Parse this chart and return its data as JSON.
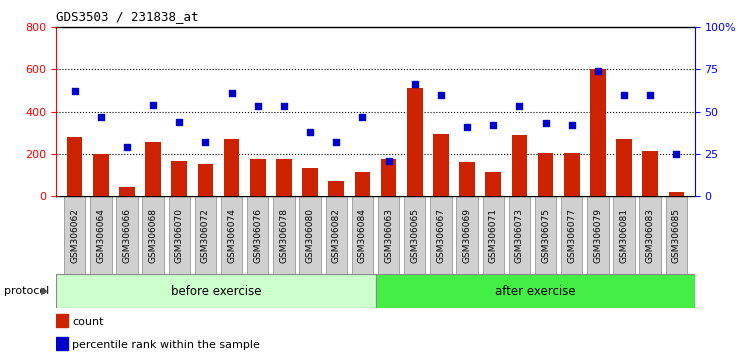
{
  "title": "GDS3503 / 231838_at",
  "categories": [
    "GSM306062",
    "GSM306064",
    "GSM306066",
    "GSM306068",
    "GSM306070",
    "GSM306072",
    "GSM306074",
    "GSM306076",
    "GSM306078",
    "GSM306080",
    "GSM306082",
    "GSM306084",
    "GSM306063",
    "GSM306065",
    "GSM306067",
    "GSM306069",
    "GSM306071",
    "GSM306073",
    "GSM306075",
    "GSM306077",
    "GSM306079",
    "GSM306081",
    "GSM306083",
    "GSM306085"
  ],
  "count_values": [
    280,
    200,
    45,
    255,
    165,
    155,
    270,
    175,
    175,
    135,
    75,
    115,
    175,
    510,
    295,
    160,
    115,
    290,
    205,
    205,
    600,
    270,
    215,
    20
  ],
  "percentile_values": [
    62,
    47,
    29,
    54,
    44,
    32,
    61,
    53,
    53,
    38,
    32,
    47,
    21,
    66,
    60,
    41,
    42,
    53,
    43,
    42,
    74,
    60,
    60,
    25
  ],
  "before_exercise_count": 12,
  "after_exercise_count": 12,
  "left_ylim": [
    0,
    800
  ],
  "right_ylim": [
    0,
    100
  ],
  "left_yticks": [
    0,
    200,
    400,
    600,
    800
  ],
  "right_yticks": [
    0,
    25,
    50,
    75,
    100
  ],
  "right_yticklabels": [
    "0",
    "25",
    "50",
    "75",
    "100%"
  ],
  "bar_color": "#cc2200",
  "dot_color": "#0000cc",
  "before_color": "#ccffcc",
  "after_color": "#44ee44",
  "protocol_label": "protocol",
  "before_label": "before exercise",
  "after_label": "after exercise",
  "legend_count_label": "count",
  "legend_pct_label": "percentile rank within the sample",
  "tick_area_color": "#d0d0d0"
}
